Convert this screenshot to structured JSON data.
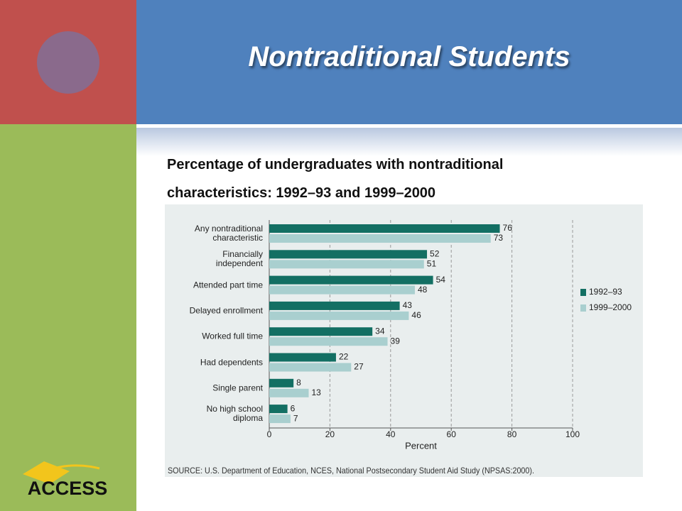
{
  "header": {
    "title": "Nontraditional Students",
    "logo": "ACCESS"
  },
  "chart_data": {
    "type": "hbar",
    "title": "Percentage of undergraduates with nontraditional characteristics: 1992–93 and 1999–2000",
    "categories": [
      "Any nontraditional\ncharacteristic",
      "Financially\nindependent",
      "Attended part time",
      "Delayed enrollment",
      "Worked full time",
      "Had dependents",
      "Single parent",
      "No high school\ndiploma"
    ],
    "series": [
      {
        "name": "1992–93",
        "color": "#136f63",
        "values": [
          76,
          52,
          54,
          43,
          34,
          22,
          8,
          6
        ]
      },
      {
        "name": "1999–2000",
        "color": "#a9cfcf",
        "values": [
          73,
          51,
          48,
          46,
          39,
          27,
          13,
          7
        ]
      }
    ],
    "xlabel": "Percent",
    "xlim": [
      0,
      100
    ],
    "xticks": [
      0,
      20,
      40,
      60,
      80,
      100
    ],
    "grid": true,
    "legend": "right",
    "source": "SOURCE: U.S. Department of Education, NCES, National Postsecondary Student Aid Study (NPSAS:2000)."
  }
}
